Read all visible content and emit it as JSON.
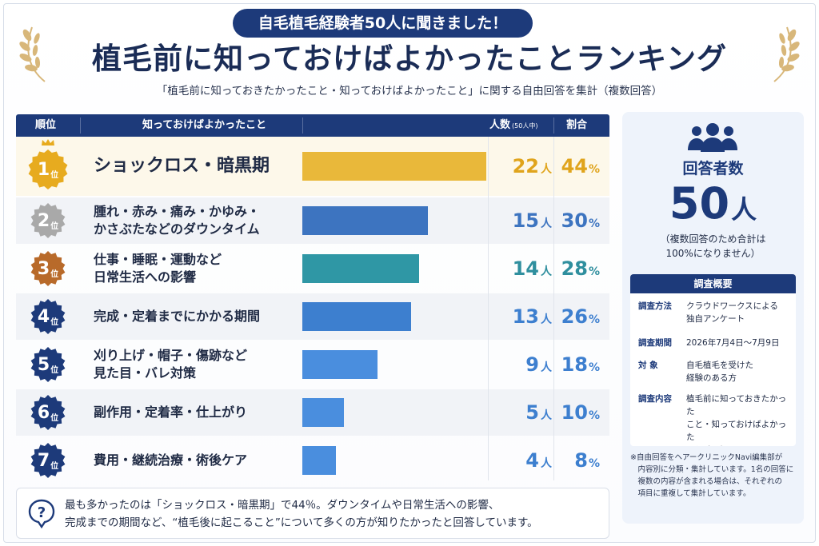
{
  "header": {
    "pill": "自毛植毛経験者50人に聞きました！",
    "title": "植毛前に知っておけばよかったことランキング",
    "subtitle": "「植毛前に知っておきたかったこと・知っておけばよかったこと」に関する自由回答を集計（複数回答）"
  },
  "columns": {
    "rank": "順位",
    "item": "知っておけばよかったこと",
    "count": "人数",
    "count_note": "(50人中)",
    "pct": "割合"
  },
  "units": {
    "rank": "位",
    "count": "人",
    "pct": "%"
  },
  "chart_data": {
    "type": "bar",
    "title": "植毛前に知っておけばよかったことランキング",
    "categories": [
      "ショックロス・暗黒期",
      "腫れ・赤み・痛み・かゆみ・\nかさぶたなどのダウンタイム",
      "仕事・睡眠・運動など\n日常生活への影響",
      "完成・定着までにかかる期間",
      "刈り上げ・帽子・傷跡など\n見た目・バレ対策",
      "副作用・定着率・仕上がり",
      "費用・継続治療・術後ケア"
    ],
    "ranks": [
      "1",
      "2",
      "3",
      "4",
      "5",
      "6",
      "7"
    ],
    "values": [
      22,
      15,
      14,
      13,
      9,
      5,
      4
    ],
    "percents": [
      44,
      30,
      28,
      26,
      18,
      10,
      8
    ],
    "xlim": [
      0,
      50
    ],
    "bar_colors": [
      "#e9b83a",
      "#3d74c0",
      "#2f97a5",
      "#3d7fcf",
      "#4a8ede",
      "#4a8ede",
      "#4a8ede"
    ],
    "badge_colors": [
      "#e7ab1f",
      "#a9a9a9",
      "#b86a2a",
      "#1d3a7a",
      "#1d3a7a",
      "#1d3a7a",
      "#1d3a7a"
    ],
    "text_colors": [
      "#e0a41c",
      "#3d74c0",
      "#2f8f9e",
      "#3d7fcf",
      "#3d7fcf",
      "#3d7fcf",
      "#3d7fcf"
    ]
  },
  "summary": {
    "text": "最も多かったのは「ショックロス・暗黒期」で44％。ダウンタイムや日常生活への影響、\n完成までの期間など、“植毛後に起こること”について多くの方が知りたかったと回答しています。"
  },
  "side": {
    "respondents_label": "回答者数",
    "respondents_value": "50",
    "respondents_unit": "人",
    "respondents_note": "（複数回答のため合計は\n100%になりません）",
    "survey_title": "調査概要",
    "survey": [
      {
        "key": "調査方法",
        "value": "クラウドワークスによる\n独自アンケート"
      },
      {
        "key": "調査期間",
        "value": "2026年7月4日〜7月9日"
      },
      {
        "key": "対 象",
        "value": "自毛植毛を受けた\n経験のある方"
      },
      {
        "key": "調査内容",
        "value": "植毛前に知っておきたかった\nこと・知っておけばよかった\nこと など"
      }
    ],
    "footnote": "※自由回答をヘアークリニックNavi編集部が\n　内容別に分類・集計しています。1名の回答に\n　複数の内容が含まれる場合は、それぞれの\n　項目に重複して集計しています。"
  },
  "colors": {
    "navy": "#1d3a7a",
    "gold": "#e7ab1f"
  }
}
